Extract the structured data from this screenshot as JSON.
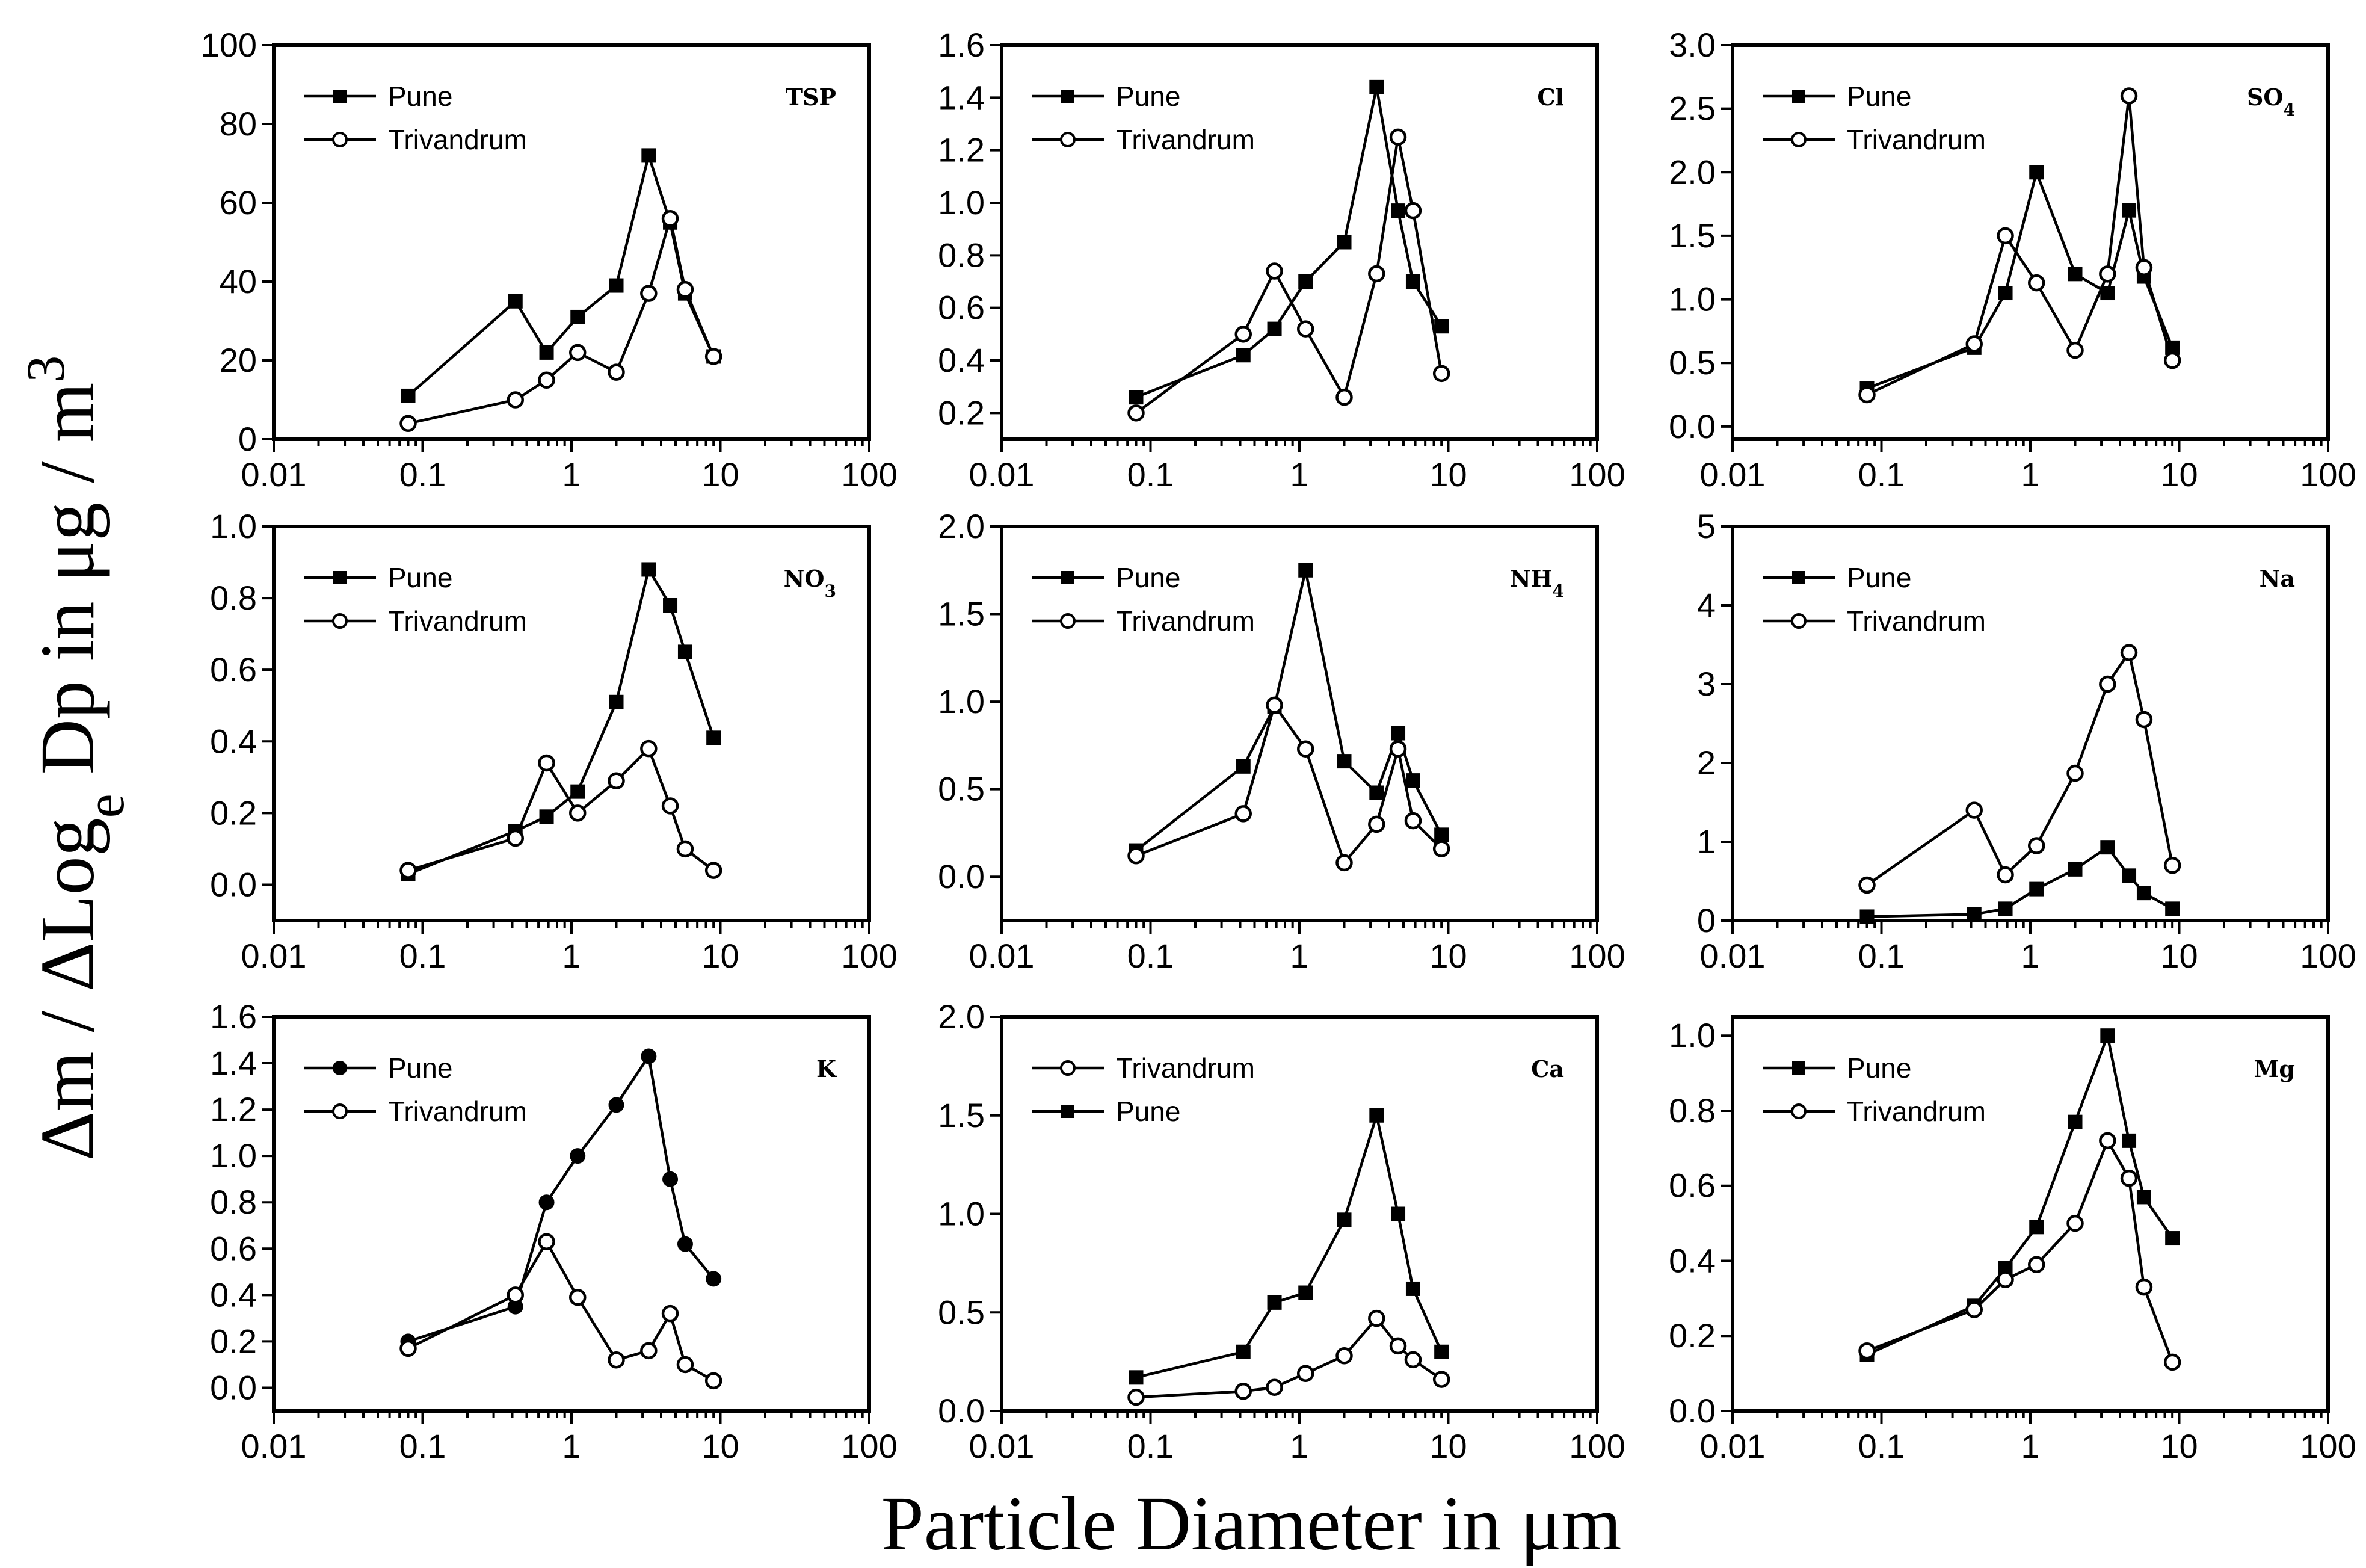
{
  "figure": {
    "ylabel": "Δm / ΔLog_e Dp in μg / m3",
    "xlabel": "Particle Diameter in μm"
  },
  "chart_data": [
    {
      "type": "line",
      "label": "TSP",
      "xscale": "log",
      "xlim": [
        0.01,
        100
      ],
      "ylim": [
        0,
        100
      ],
      "xticks": [
        "0.01",
        "0.1",
        "1",
        "10",
        "100"
      ],
      "yticks": [
        "0",
        "20",
        "40",
        "60",
        "80",
        "100"
      ],
      "legend": [
        "Pune",
        "Trivandrum"
      ],
      "series": [
        {
          "name": "Pune",
          "marker": "filled-square",
          "x": [
            0.08,
            0.42,
            0.68,
            1.1,
            2.0,
            3.3,
            4.6,
            5.8,
            9.0
          ],
          "y": [
            11,
            35,
            22,
            31,
            39,
            72,
            55,
            37,
            21
          ]
        },
        {
          "name": "Trivandrum",
          "marker": "open-circle",
          "x": [
            0.08,
            0.42,
            0.68,
            1.1,
            2.0,
            3.3,
            4.6,
            5.8,
            9.0
          ],
          "y": [
            4,
            10,
            15,
            22,
            17,
            37,
            56,
            38,
            21
          ]
        }
      ]
    },
    {
      "type": "line",
      "label": "Cl",
      "xscale": "log",
      "xlim": [
        0.01,
        100
      ],
      "ylim": [
        0.1,
        1.6
      ],
      "xticks": [
        "0.01",
        "0.1",
        "1",
        "10",
        "100"
      ],
      "yticks": [
        "0.2",
        "0.4",
        "0.6",
        "0.8",
        "1.0",
        "1.2",
        "1.4",
        "1.6"
      ],
      "legend": [
        "Pune",
        "Trivandrum"
      ],
      "series": [
        {
          "name": "Pune",
          "marker": "filled-square",
          "x": [
            0.08,
            0.42,
            0.68,
            1.1,
            2.0,
            3.3,
            4.6,
            5.8,
            9.0
          ],
          "y": [
            0.26,
            0.42,
            0.52,
            0.7,
            0.85,
            1.44,
            0.97,
            0.7,
            0.53
          ]
        },
        {
          "name": "Trivandrum",
          "marker": "open-circle",
          "x": [
            0.08,
            0.42,
            0.68,
            1.1,
            2.0,
            3.3,
            4.6,
            5.8,
            9.0
          ],
          "y": [
            0.2,
            0.5,
            0.74,
            0.52,
            0.26,
            0.73,
            1.25,
            0.97,
            0.35
          ]
        }
      ]
    },
    {
      "type": "line",
      "label": "SO4",
      "xscale": "log",
      "xlim": [
        0.01,
        100
      ],
      "ylim": [
        -0.1,
        3.0
      ],
      "xticks": [
        "0.01",
        "0.1",
        "1",
        "10",
        "100"
      ],
      "yticks": [
        "0.0",
        "0.5",
        "1.0",
        "1.5",
        "2.0",
        "2.5",
        "3.0"
      ],
      "legend": [
        "Pune",
        "Trivandrum"
      ],
      "series": [
        {
          "name": "Pune",
          "marker": "filled-square",
          "x": [
            0.08,
            0.42,
            0.68,
            1.1,
            2.0,
            3.3,
            4.6,
            5.8,
            9.0
          ],
          "y": [
            0.3,
            0.62,
            1.05,
            2.0,
            1.2,
            1.05,
            1.7,
            1.18,
            0.62
          ]
        },
        {
          "name": "Trivandrum",
          "marker": "open-circle",
          "x": [
            0.08,
            0.42,
            0.68,
            1.1,
            2.0,
            3.3,
            4.6,
            5.8,
            9.0
          ],
          "y": [
            0.25,
            0.65,
            1.5,
            1.13,
            0.6,
            1.2,
            2.6,
            1.25,
            0.52
          ]
        }
      ]
    },
    {
      "type": "line",
      "label": "NO3",
      "xscale": "log",
      "xlim": [
        0.01,
        100
      ],
      "ylim": [
        -0.1,
        1.0
      ],
      "xticks": [
        "0.01",
        "0.1",
        "1",
        "10",
        "100"
      ],
      "yticks": [
        "0.0",
        "0.2",
        "0.4",
        "0.6",
        "0.8",
        "1.0"
      ],
      "legend": [
        "Pune",
        "Trivandrum"
      ],
      "series": [
        {
          "name": "Pune",
          "marker": "filled-square",
          "x": [
            0.08,
            0.42,
            0.68,
            1.1,
            2.0,
            3.3,
            4.6,
            5.8,
            9.0
          ],
          "y": [
            0.03,
            0.15,
            0.19,
            0.26,
            0.51,
            0.88,
            0.78,
            0.65,
            0.41
          ]
        },
        {
          "name": "Trivandrum",
          "marker": "open-circle",
          "x": [
            0.08,
            0.42,
            0.68,
            1.1,
            2.0,
            3.3,
            4.6,
            5.8,
            9.0
          ],
          "y": [
            0.04,
            0.13,
            0.34,
            0.2,
            0.29,
            0.38,
            0.22,
            0.1,
            0.04
          ]
        }
      ]
    },
    {
      "type": "line",
      "label": "NH4",
      "xscale": "log",
      "xlim": [
        0.01,
        100
      ],
      "ylim": [
        -0.25,
        2.0
      ],
      "xticks": [
        "0.01",
        "0.1",
        "1",
        "10",
        "100"
      ],
      "yticks": [
        "0.0",
        "0.5",
        "1.0",
        "1.5",
        "2.0"
      ],
      "legend": [
        "Pune",
        "Trivandrum"
      ],
      "series": [
        {
          "name": "Pune",
          "marker": "filled-square",
          "x": [
            0.08,
            0.42,
            0.68,
            1.1,
            2.0,
            3.3,
            4.6,
            5.8,
            9.0
          ],
          "y": [
            0.15,
            0.63,
            0.97,
            1.75,
            0.66,
            0.48,
            0.82,
            0.55,
            0.24
          ]
        },
        {
          "name": "Trivandrum",
          "marker": "open-circle",
          "x": [
            0.08,
            0.42,
            0.68,
            1.1,
            2.0,
            3.3,
            4.6,
            5.8,
            9.0
          ],
          "y": [
            0.12,
            0.36,
            0.98,
            0.73,
            0.08,
            0.3,
            0.73,
            0.32,
            0.16
          ]
        }
      ]
    },
    {
      "type": "line",
      "label": "Na",
      "xscale": "log",
      "xlim": [
        0.01,
        100
      ],
      "ylim": [
        0,
        5
      ],
      "xticks": [
        "0.01",
        "0.1",
        "1",
        "10",
        "100"
      ],
      "yticks": [
        "0",
        "1",
        "2",
        "3",
        "4",
        "5"
      ],
      "legend": [
        "Pune",
        "Trivandrum"
      ],
      "series": [
        {
          "name": "Pune",
          "marker": "filled-square",
          "x": [
            0.08,
            0.42,
            0.68,
            1.1,
            2.0,
            3.3,
            4.6,
            5.8,
            9.0
          ],
          "y": [
            0.05,
            0.08,
            0.15,
            0.4,
            0.65,
            0.93,
            0.57,
            0.35,
            0.15
          ]
        },
        {
          "name": "Trivandrum",
          "marker": "open-circle",
          "x": [
            0.08,
            0.42,
            0.68,
            1.1,
            2.0,
            3.3,
            4.6,
            5.8,
            9.0
          ],
          "y": [
            0.45,
            1.4,
            0.58,
            0.95,
            1.87,
            3.0,
            3.4,
            2.55,
            0.7
          ]
        }
      ]
    },
    {
      "type": "line",
      "label": "K",
      "xscale": "log",
      "xlim": [
        0.01,
        100
      ],
      "ylim": [
        -0.1,
        1.6
      ],
      "xticks": [
        "0.01",
        "0.1",
        "1",
        "10",
        "100"
      ],
      "yticks": [
        "0.0",
        "0.2",
        "0.4",
        "0.6",
        "0.8",
        "1.0",
        "1.2",
        "1.4",
        "1.6"
      ],
      "legend": [
        "Pune",
        "Trivandrum"
      ],
      "series": [
        {
          "name": "Pune",
          "marker": "filled-circle",
          "x": [
            0.08,
            0.42,
            0.68,
            1.1,
            2.0,
            3.3,
            4.6,
            5.8,
            9.0
          ],
          "y": [
            0.2,
            0.35,
            0.8,
            1.0,
            1.22,
            1.43,
            0.9,
            0.62,
            0.47
          ]
        },
        {
          "name": "Trivandrum",
          "marker": "open-circle",
          "x": [
            0.08,
            0.42,
            0.68,
            1.1,
            2.0,
            3.3,
            4.6,
            5.8,
            9.0
          ],
          "y": [
            0.17,
            0.4,
            0.63,
            0.39,
            0.12,
            0.16,
            0.32,
            0.1,
            0.03
          ]
        }
      ]
    },
    {
      "type": "line",
      "label": "Ca",
      "xscale": "log",
      "xlim": [
        0.01,
        100
      ],
      "ylim": [
        0,
        2.0
      ],
      "xticks": [
        "0.01",
        "0.1",
        "1",
        "10",
        "100"
      ],
      "yticks": [
        "0.0",
        "0.5",
        "1.0",
        "1.5",
        "2.0"
      ],
      "legend": [
        "Trivandrum",
        "Pune"
      ],
      "series": [
        {
          "name": "Trivandrum",
          "marker": "open-circle",
          "x": [
            0.08,
            0.42,
            0.68,
            1.1,
            2.0,
            3.3,
            4.6,
            5.8,
            9.0
          ],
          "y": [
            0.07,
            0.1,
            0.12,
            0.19,
            0.28,
            0.47,
            0.33,
            0.26,
            0.16
          ]
        },
        {
          "name": "Pune",
          "marker": "filled-square",
          "x": [
            0.08,
            0.42,
            0.68,
            1.1,
            2.0,
            3.3,
            4.6,
            5.8,
            9.0
          ],
          "y": [
            0.17,
            0.3,
            0.55,
            0.6,
            0.97,
            1.5,
            1.0,
            0.62,
            0.3
          ]
        }
      ]
    },
    {
      "type": "line",
      "label": "Mg",
      "xscale": "log",
      "xlim": [
        0.01,
        100
      ],
      "ylim": [
        0,
        1.05
      ],
      "xticks": [
        "0.01",
        "0.1",
        "1",
        "10",
        "100"
      ],
      "yticks": [
        "0.0",
        "0.2",
        "0.4",
        "0.6",
        "0.8",
        "1.0"
      ],
      "legend": [
        "Pune",
        "Trivandrum"
      ],
      "series": [
        {
          "name": "Pune",
          "marker": "filled-square",
          "x": [
            0.08,
            0.42,
            0.68,
            1.1,
            2.0,
            3.3,
            4.6,
            5.8,
            9.0
          ],
          "y": [
            0.15,
            0.28,
            0.38,
            0.49,
            0.77,
            1.0,
            0.72,
            0.57,
            0.46
          ]
        },
        {
          "name": "Trivandrum",
          "marker": "open-circle",
          "x": [
            0.08,
            0.42,
            0.68,
            1.1,
            2.0,
            3.3,
            4.6,
            5.8,
            9.0
          ],
          "y": [
            0.16,
            0.27,
            0.35,
            0.39,
            0.5,
            0.72,
            0.62,
            0.33,
            0.13
          ]
        }
      ]
    }
  ]
}
